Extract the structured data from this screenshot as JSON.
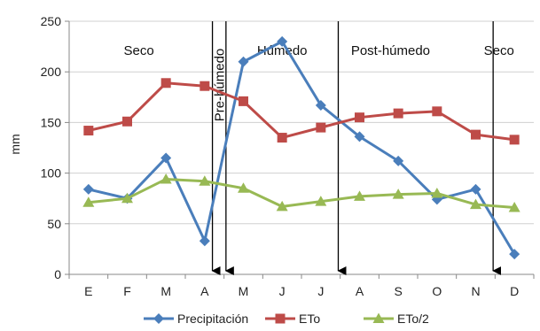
{
  "chart_data": {
    "type": "line",
    "title": "",
    "xlabel": "",
    "ylabel": "mm",
    "ylim": [
      0,
      250
    ],
    "yticks": [
      0,
      50,
      100,
      150,
      200,
      250
    ],
    "grid": true,
    "legend_position": "bottom",
    "categories": [
      "E",
      "F",
      "M",
      "A",
      "M",
      "J",
      "J",
      "A",
      "S",
      "O",
      "N",
      "D"
    ],
    "series": [
      {
        "name": "Precipitación",
        "color": "#4a7ebb",
        "marker": "diamond",
        "values": [
          84,
          75,
          115,
          33,
          210,
          230,
          167,
          136,
          112,
          74,
          84,
          20
        ]
      },
      {
        "name": "ETo",
        "color": "#be4b48",
        "marker": "square",
        "values": [
          142,
          151,
          189,
          186,
          171,
          135,
          145,
          155,
          159,
          161,
          138,
          133
        ]
      },
      {
        "name": "ETo/2",
        "color": "#98b954",
        "marker": "triangle",
        "values": [
          71,
          75,
          94,
          92,
          85,
          67,
          72,
          77,
          79,
          80,
          69,
          66
        ]
      }
    ],
    "season_labels": [
      {
        "text": "Seco",
        "at": 1.8,
        "rotated": false
      },
      {
        "text": "Pre-húmedo",
        "at": 3.88,
        "rotated": true
      },
      {
        "text": "Húmedo",
        "at": 5.5,
        "rotated": false
      },
      {
        "text": "Post-húmedo",
        "at": 8.3,
        "rotated": false
      },
      {
        "text": "Seco",
        "at": 11.1,
        "rotated": false
      }
    ],
    "season_dividers": [
      3.7,
      4.05,
      6.95,
      10.95
    ]
  }
}
